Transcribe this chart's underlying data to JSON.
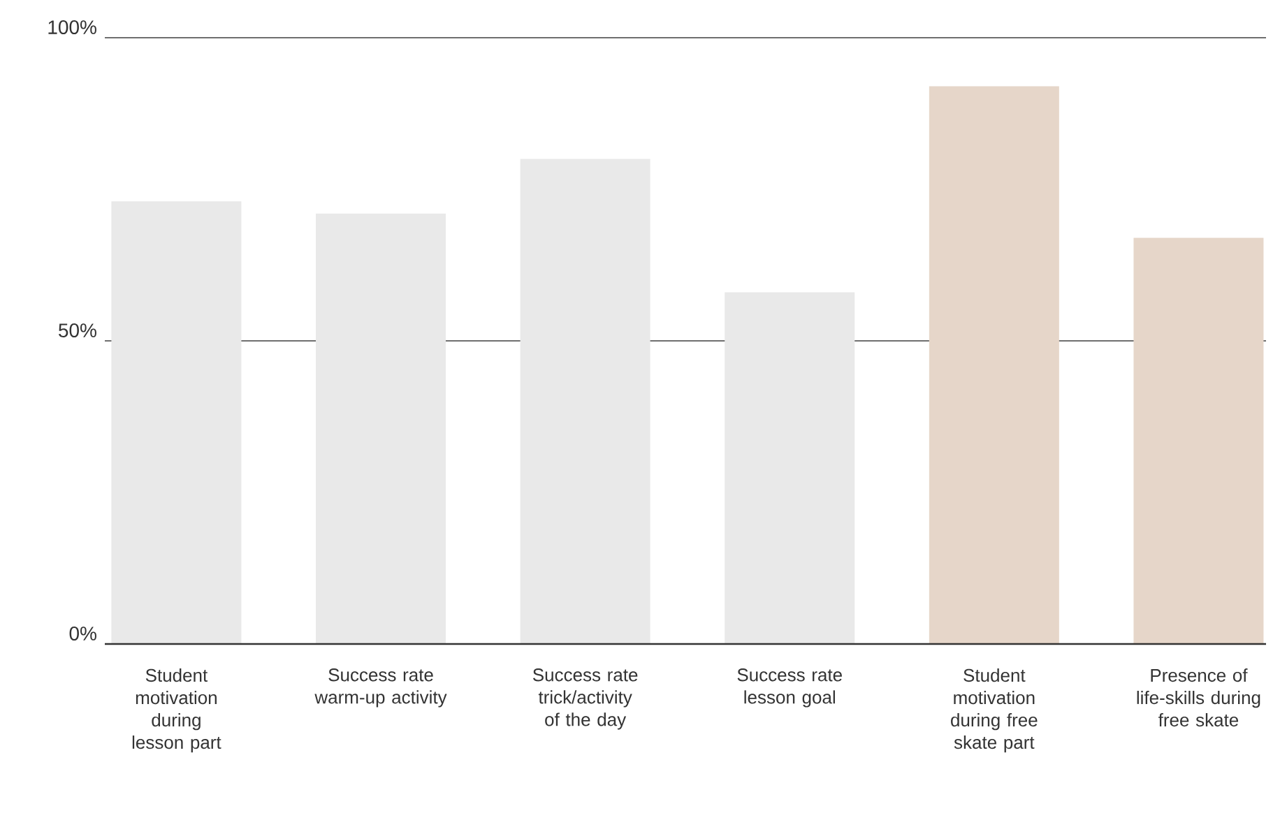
{
  "chart_data": {
    "type": "bar",
    "categories": [
      "Student motivation during lesson part",
      "Success rate warm-up activity",
      "Success rate trick/activity of the day",
      "Success rate lesson goal",
      "Student motivation during free skate part",
      "Presence of life-skills during free skate"
    ],
    "values": [
      73,
      71,
      80,
      58,
      92,
      67
    ],
    "colors": [
      "#e9e9e9",
      "#e9e9e9",
      "#e9e9e9",
      "#e9e9e9",
      "#e6d6c9",
      "#e6d6c9"
    ],
    "ylim": [
      0,
      100
    ],
    "yticks": [
      {
        "value": 0,
        "label": "0%"
      },
      {
        "value": 50,
        "label": "50%"
      },
      {
        "value": 100,
        "label": "100%"
      }
    ],
    "grid": "y"
  }
}
